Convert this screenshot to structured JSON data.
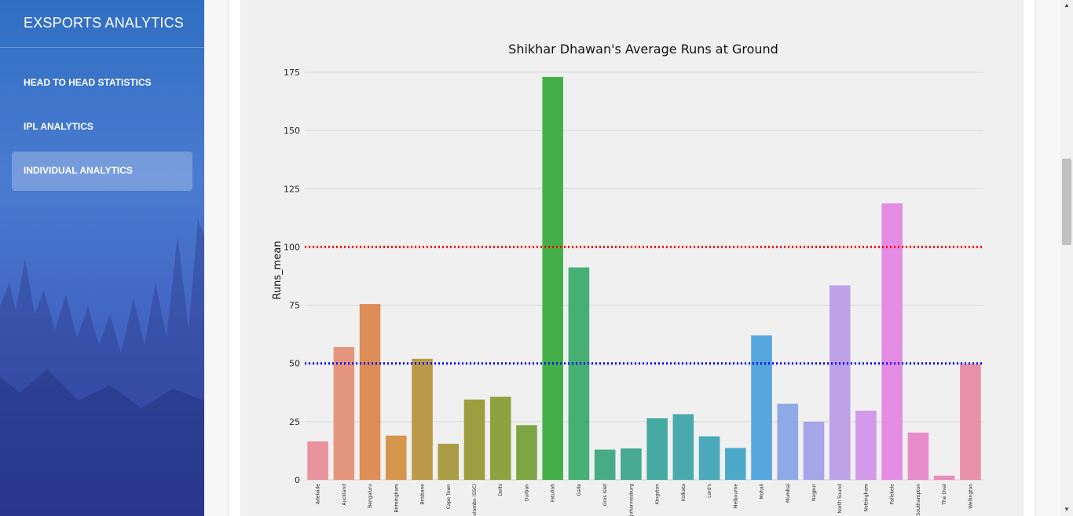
{
  "sidebar": {
    "brand": "EXSPORTS ANALYTICS",
    "items": [
      {
        "label": "HEAD TO HEAD STATISTICS",
        "active": false
      },
      {
        "label": "IPL ANALYTICS",
        "active": false
      },
      {
        "label": "INDIVIDUAL ANALYTICS",
        "active": true
      }
    ]
  },
  "chart_data": {
    "type": "bar",
    "title": "Shikhar Dhawan's Average Runs at Ground",
    "xlabel": "",
    "ylabel": "Runs_mean",
    "ylim": [
      0,
      175
    ],
    "yticks": [
      0,
      25,
      50,
      75,
      100,
      125,
      150,
      175
    ],
    "grid": true,
    "categories": [
      "Adelaide",
      "Auckland",
      "Bengaluru",
      "Birmingham",
      "Brisbane",
      "Cape Town",
      "Colombo (SSC)",
      "Delhi",
      "Durban",
      "Fatullah",
      "Galle",
      "Gros Islet",
      "Johannesburg",
      "Kingston",
      "Kolkata",
      "Lord's",
      "Melbourne",
      "Mohali",
      "Mumbai",
      "Nagpur",
      "North Sound",
      "Nottingham",
      "Pallekele",
      "Southampton",
      "The Oval",
      "Wellington"
    ],
    "values": [
      16.5,
      57,
      75.5,
      19,
      52,
      15.5,
      34.5,
      35.7,
      23.5,
      173,
      91.2,
      13,
      13.5,
      26.5,
      28.2,
      18.7,
      13.7,
      62,
      32.7,
      25,
      83.5,
      29.7,
      118.7,
      20.3,
      1.8,
      49.7
    ],
    "colors": [
      "#e8929b",
      "#e4967e",
      "#dd8d57",
      "#d3964c",
      "#ba9a48",
      "#a99c45",
      "#9c9e40",
      "#8ea23f",
      "#7da543",
      "#43b04a",
      "#47ae74",
      "#48ab87",
      "#48aa95",
      "#47aaa2",
      "#49aaad",
      "#4aa9ba",
      "#4da9c9",
      "#56a7dd",
      "#8ea9e6",
      "#a6a5e8",
      "#bda2e8",
      "#d29ae8",
      "#e48be4",
      "#e78dcc",
      "#e88db9",
      "#e88faa"
    ],
    "reference_lines": [
      {
        "value": 100,
        "color": "#ff0000",
        "style": "dotted"
      },
      {
        "value": 50,
        "color": "#0000ff",
        "style": "dotted"
      }
    ]
  }
}
